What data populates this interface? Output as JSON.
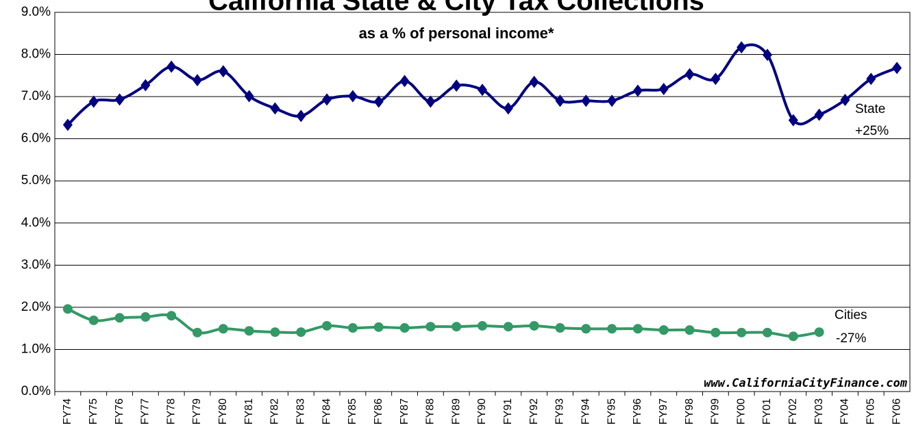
{
  "chart_data": {
    "type": "line",
    "title": "California State & City Tax Collections",
    "subtitle": "as a % of personal income*",
    "categories": [
      "FY74",
      "FY75",
      "FY76",
      "FY77",
      "FY78",
      "FY79",
      "FY80",
      "FY81",
      "FY82",
      "FY83",
      "FY84",
      "FY85",
      "FY86",
      "FY87",
      "FY88",
      "FY89",
      "FY90",
      "FY91",
      "FY92",
      "FY93",
      "FY94",
      "FY95",
      "FY96",
      "FY97",
      "FY98",
      "FY99",
      "FY00",
      "FY01",
      "FY02",
      "FY03",
      "FY04",
      "FY05",
      "FY06"
    ],
    "series": [
      {
        "name": "State",
        "color": "#000080",
        "marker": "diamond",
        "values": [
          6.33,
          6.88,
          6.93,
          7.27,
          7.71,
          7.39,
          7.6,
          7.01,
          6.72,
          6.54,
          6.93,
          7.01,
          6.88,
          7.37,
          6.88,
          7.26,
          7.16,
          6.72,
          7.35,
          6.9,
          6.9,
          6.9,
          7.14,
          7.18,
          7.53,
          7.42,
          8.17,
          7.99,
          6.44,
          6.57,
          6.92,
          7.42,
          7.68
        ]
      },
      {
        "name": "Cities",
        "color": "#339966",
        "marker": "circle",
        "values": [
          1.96,
          1.69,
          1.75,
          1.77,
          1.8,
          1.4,
          1.49,
          1.44,
          1.41,
          1.41,
          1.56,
          1.51,
          1.53,
          1.51,
          1.54,
          1.54,
          1.56,
          1.54,
          1.56,
          1.51,
          1.49,
          1.49,
          1.49,
          1.46,
          1.46,
          1.4,
          1.4,
          1.4,
          1.31,
          1.41,
          null,
          null,
          null
        ]
      }
    ],
    "annotations": [
      "+25%",
      "-27%",
      "www.CaliforniaCityFinance.com"
    ],
    "ylim": [
      0,
      9
    ],
    "yticks": [
      {
        "value": 0,
        "label": "0.0%"
      },
      {
        "value": 1,
        "label": "1.0%"
      },
      {
        "value": 2,
        "label": "2.0%"
      },
      {
        "value": 3,
        "label": "3.0%"
      },
      {
        "value": 4,
        "label": "4.0%"
      },
      {
        "value": 5,
        "label": "5.0%"
      },
      {
        "value": 6,
        "label": "6.0%"
      },
      {
        "value": 7,
        "label": "7.0%"
      },
      {
        "value": 8,
        "label": "8.0%"
      },
      {
        "value": 9,
        "label": "9.0%"
      }
    ],
    "grid": true
  }
}
